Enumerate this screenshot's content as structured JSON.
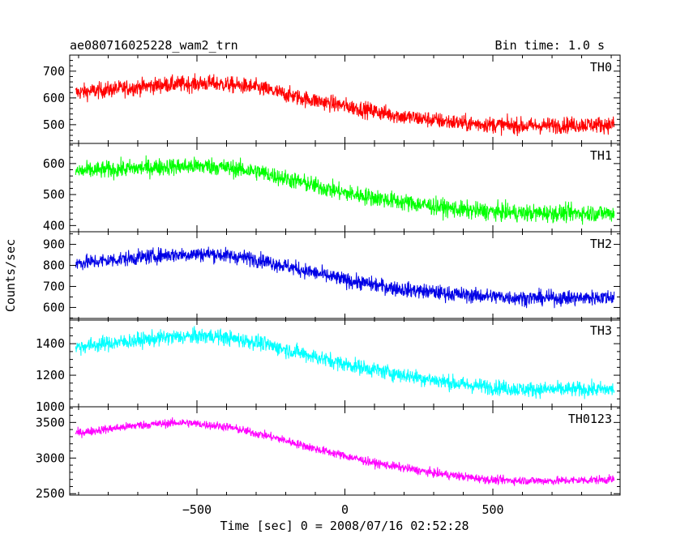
{
  "header": {
    "title": "ae080716025228_wam2_trn",
    "bin_time": "Bin time: 1.0 s"
  },
  "chart_data": {
    "type": "line",
    "title": "ae080716025228_wam2_trn",
    "subtitle": "Bin time: 1.0 s",
    "xlabel": "Time [sec] 0 = 2008/07/16 02:52:28",
    "ylabel": "Counts/sec",
    "xlim": [
      -930,
      930
    ],
    "x_ticks": [
      -500,
      0,
      500
    ],
    "x_tick_labels": [
      "−500",
      "0",
      "500"
    ],
    "x_range_data": [
      -910,
      910
    ],
    "grid": false,
    "panels": [
      {
        "name": "TH0",
        "color": "#ff0000",
        "ylim": [
          430,
          760
        ],
        "yticks": [
          500,
          600,
          700
        ],
        "ytick_labels": [
          "500",
          "600",
          "700"
        ],
        "trend_x": [
          -910,
          -600,
          -450,
          -300,
          -150,
          0,
          200,
          400,
          600,
          800,
          910
        ],
        "trend_y": [
          620,
          650,
          655,
          640,
          600,
          570,
          530,
          505,
          495,
          500,
          500
        ],
        "noise": 28
      },
      {
        "name": "TH1",
        "color": "#00ff00",
        "ylim": [
          380,
          665
        ],
        "yticks": [
          400,
          500,
          600
        ],
        "ytick_labels": [
          "400",
          "500",
          "600"
        ],
        "trend_x": [
          -910,
          -600,
          -450,
          -300,
          -150,
          0,
          200,
          400,
          600,
          800,
          910
        ],
        "trend_y": [
          575,
          590,
          592,
          575,
          540,
          505,
          475,
          450,
          440,
          440,
          440
        ],
        "noise": 26
      },
      {
        "name": "TH2",
        "color": "#0000e6",
        "ylim": [
          540,
          960
        ],
        "yticks": [
          600,
          700,
          800,
          900
        ],
        "ytick_labels": [
          "600",
          "700",
          "800",
          "900"
        ],
        "trend_x": [
          -910,
          -600,
          -450,
          -300,
          -150,
          0,
          200,
          400,
          600,
          800,
          910
        ],
        "trend_y": [
          810,
          850,
          855,
          830,
          780,
          730,
          685,
          660,
          645,
          645,
          650
        ],
        "noise": 33
      },
      {
        "name": "TH3",
        "color": "#00ffff",
        "ylim": [
          1000,
          1560
        ],
        "yticks": [
          1000,
          1200,
          1400
        ],
        "ytick_labels": [
          "1000",
          "1200",
          "1400"
        ],
        "trend_x": [
          -910,
          -600,
          -450,
          -300,
          -150,
          0,
          200,
          400,
          600,
          800,
          910
        ],
        "trend_y": [
          1380,
          1440,
          1450,
          1410,
          1340,
          1270,
          1200,
          1140,
          1110,
          1110,
          1110
        ],
        "noise": 45
      },
      {
        "name": "TH0123",
        "color": "#ff00ff",
        "ylim": [
          2480,
          3720
        ],
        "yticks": [
          2500,
          3000,
          3500
        ],
        "ytick_labels": [
          "2500",
          "3000",
          "3500"
        ],
        "trend_x": [
          -910,
          -700,
          -550,
          -400,
          -250,
          -100,
          100,
          300,
          500,
          700,
          910
        ],
        "trend_y": [
          3350,
          3460,
          3500,
          3440,
          3300,
          3130,
          2930,
          2790,
          2690,
          2680,
          2700
        ],
        "noise": 55
      }
    ]
  }
}
